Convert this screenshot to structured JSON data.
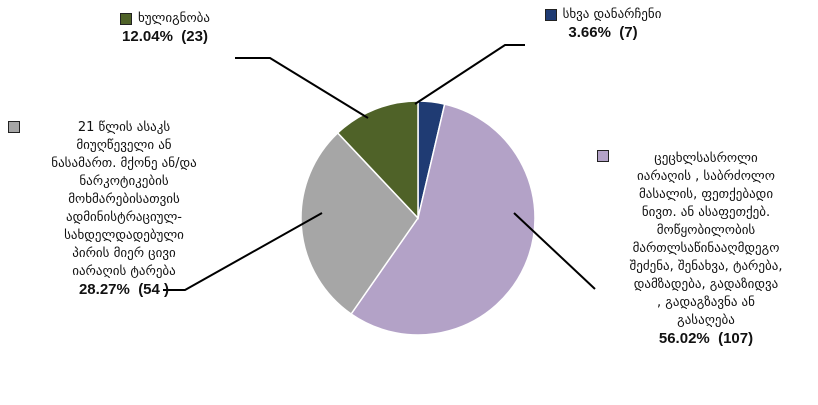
{
  "chart_data": {
    "type": "pie",
    "slices": [
      {
        "label": "სხვა დანარჩენი",
        "percent_label": "3.66%",
        "count_label": "(7)",
        "value": 7,
        "color": "#1f3b73"
      },
      {
        "label": "ცეცხლსასროლი\nიარაღის , საბრძოლო\nმასალის, ფეთქებადი\nნივთ. ან ასაფეთქებ.\nმოწყობილობის\nმართლსაწინააღმდეგო\nშეძენა, შენახვა, ტარება,\nდამზადება, გადაზიდვა\n, გადაგზავნა ან\nგასაღება",
        "percent_label": "56.02%",
        "count_label": "(107)",
        "value": 107,
        "color": "#b3a2c7"
      },
      {
        "label": "21 წლის ასაკს\nმიუღწეველი ან\nნასამართ. მქონე ან/და\nნარკოტიკების\nმოხმარებისათვის\nადმინისტრაციულ-\nსახდელდადებული\nპირის მიერ ცივი\nიარაღის ტარება",
        "percent_label": "28.27%",
        "count_label": "(54 )",
        "value": 54,
        "color": "#a6a6a6"
      },
      {
        "label": "ხულიგნობა",
        "percent_label": "12.04%",
        "count_label": "(23)",
        "value": 23,
        "color": "#4f6228"
      }
    ]
  }
}
